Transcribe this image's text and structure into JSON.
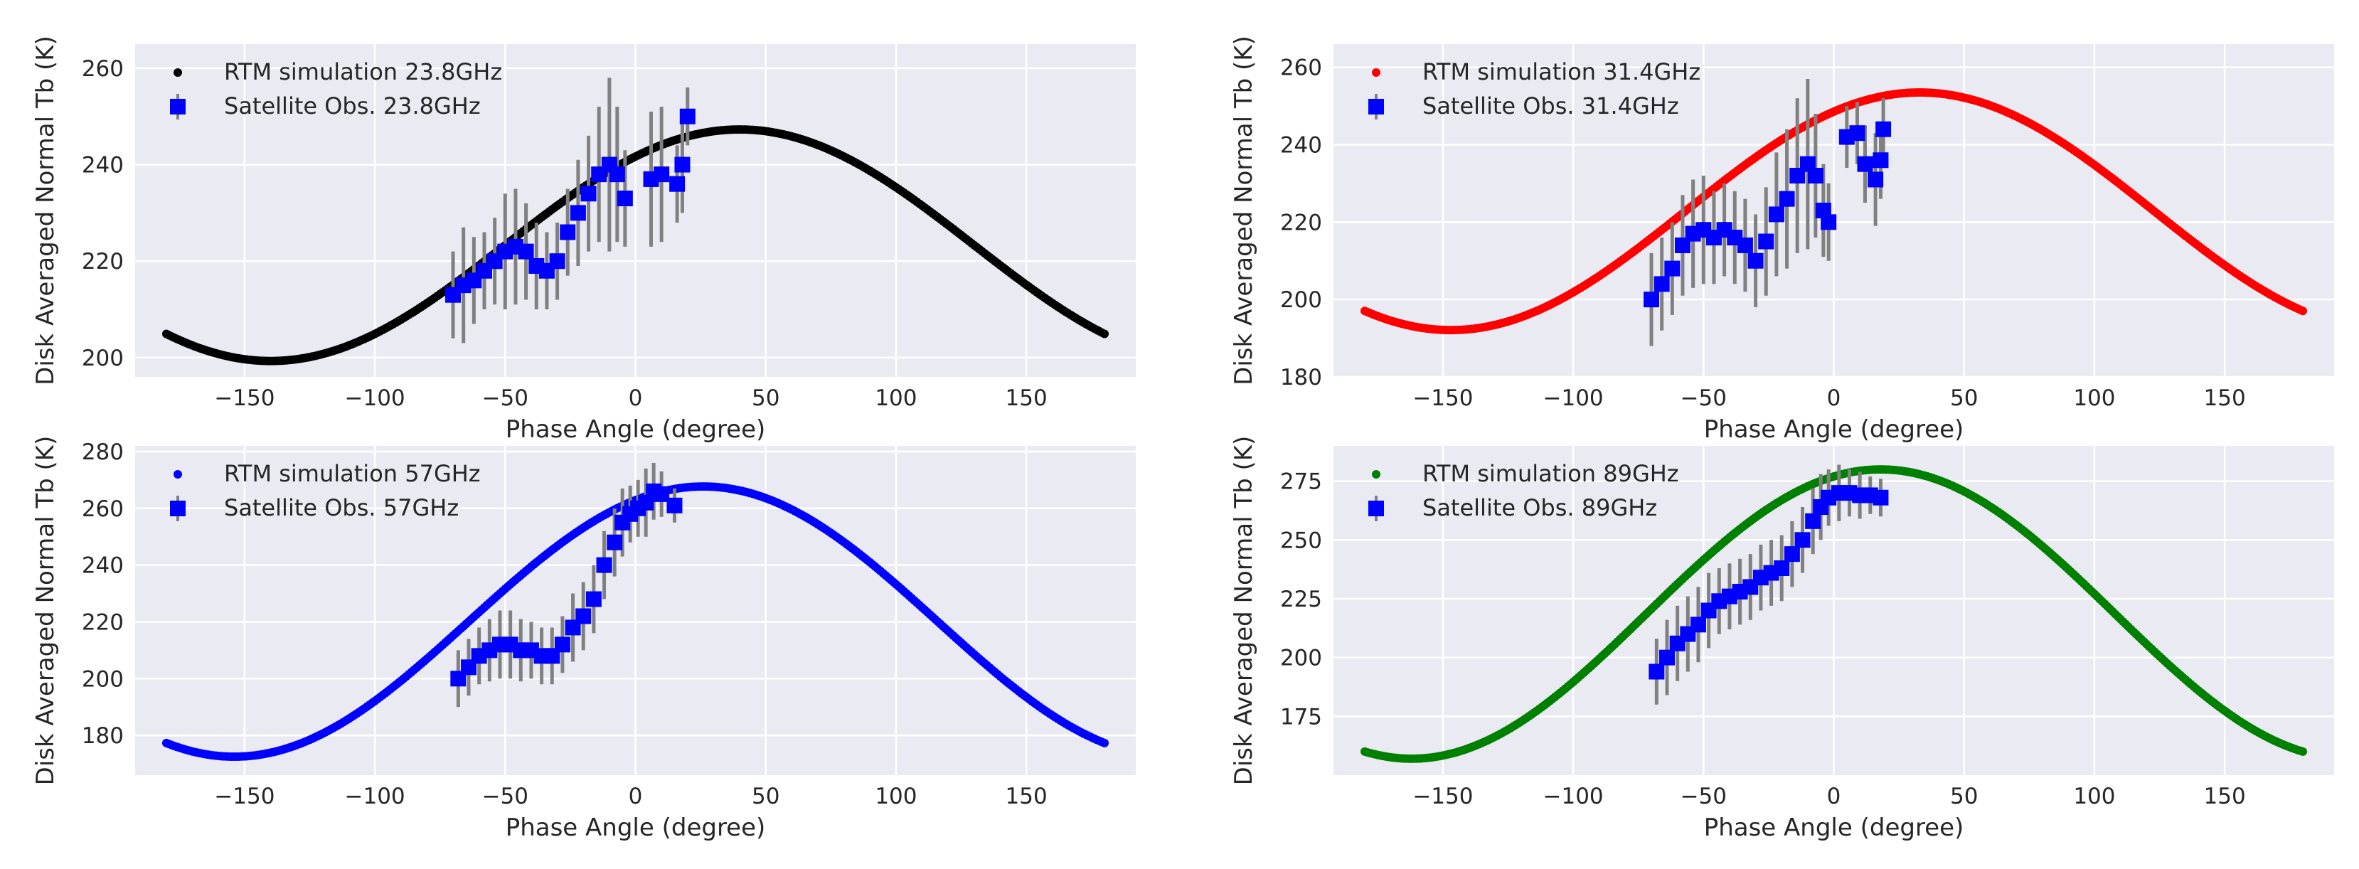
{
  "figure": {
    "background": "#ffffff",
    "panel_background": "#eaeaf2",
    "grid_color": "#ffffff",
    "errorbar_color": "#808080",
    "obs_color": "#0000ff"
  },
  "chart_data": [
    {
      "type": "scatter",
      "frequency": "23.8GHz",
      "xlabel": "Phase Angle (degree)",
      "ylabel": "Disk Averaged Normal Tb (K)",
      "xlim": [
        -192,
        192
      ],
      "ylim": [
        196,
        265
      ],
      "xticks": [
        -150,
        -100,
        -50,
        0,
        50,
        100,
        150
      ],
      "xticklabels": [
        "−150",
        "−100",
        "−50",
        "0",
        "50",
        "100",
        "150"
      ],
      "yticks": [
        200,
        220,
        240,
        260
      ],
      "yticklabels": [
        "200",
        "220",
        "240",
        "260"
      ],
      "legend_location": "upper-left",
      "model": {
        "name": "RTM simulation 23.8GHz",
        "color": "#000000",
        "mean": 223.3,
        "amplitude": 24.0,
        "peak_phase": 40
      },
      "observations": {
        "name": "Satellite Obs. 23.8GHz",
        "points": [
          [
            -70,
            213,
            9
          ],
          [
            -66,
            215,
            12
          ],
          [
            -62,
            216,
            9
          ],
          [
            -58,
            218,
            8
          ],
          [
            -54,
            220,
            9
          ],
          [
            -50,
            222,
            12
          ],
          [
            -46,
            223,
            12
          ],
          [
            -42,
            222,
            10
          ],
          [
            -38,
            219,
            9
          ],
          [
            -34,
            218,
            8
          ],
          [
            -30,
            220,
            8
          ],
          [
            -26,
            226,
            9
          ],
          [
            -22,
            230,
            11
          ],
          [
            -18,
            234,
            12
          ],
          [
            -14,
            238,
            14
          ],
          [
            -10,
            240,
            18
          ],
          [
            -7,
            238,
            14
          ],
          [
            -4,
            233,
            10
          ],
          [
            6,
            237,
            14
          ],
          [
            10,
            238,
            14
          ],
          [
            16,
            236,
            8
          ],
          [
            18,
            240,
            10
          ],
          [
            20,
            250,
            6
          ]
        ]
      }
    },
    {
      "type": "scatter",
      "frequency": "31.4GHz",
      "xlabel": "Phase Angle (degree)",
      "ylabel": "Disk Averaged Normal Tb (K)",
      "xlim": [
        -192,
        192
      ],
      "ylim": [
        180,
        266
      ],
      "xticks": [
        -150,
        -100,
        -50,
        0,
        50,
        100,
        150
      ],
      "xticklabels": [
        "−150",
        "−100",
        "−50",
        "0",
        "50",
        "100",
        "150"
      ],
      "yticks": [
        180,
        200,
        220,
        240,
        260
      ],
      "yticklabels": [
        "180",
        "200",
        "220",
        "240",
        "260"
      ],
      "legend_location": "upper-left",
      "model": {
        "name": "RTM simulation 31.4GHz",
        "color": "#ff0000",
        "mean": 222.8,
        "amplitude": 30.7,
        "peak_phase": 33
      },
      "observations": {
        "name": "Satellite Obs. 31.4GHz",
        "points": [
          [
            -70,
            200,
            12
          ],
          [
            -66,
            204,
            12
          ],
          [
            -62,
            208,
            12
          ],
          [
            -58,
            214,
            13
          ],
          [
            -54,
            217,
            14
          ],
          [
            -50,
            218,
            14
          ],
          [
            -46,
            216,
            12
          ],
          [
            -42,
            218,
            12
          ],
          [
            -38,
            216,
            12
          ],
          [
            -34,
            214,
            12
          ],
          [
            -30,
            210,
            12
          ],
          [
            -26,
            215,
            14
          ],
          [
            -22,
            222,
            16
          ],
          [
            -18,
            226,
            18
          ],
          [
            -14,
            232,
            20
          ],
          [
            -10,
            235,
            22
          ],
          [
            -7,
            232,
            16
          ],
          [
            -4,
            223,
            12
          ],
          [
            -2,
            220,
            10
          ],
          [
            5,
            242,
            8
          ],
          [
            9,
            243,
            8
          ],
          [
            12,
            235,
            10
          ],
          [
            16,
            231,
            12
          ],
          [
            18,
            236,
            10
          ],
          [
            19,
            244,
            8
          ]
        ]
      }
    },
    {
      "type": "scatter",
      "frequency": "57GHz",
      "xlabel": "Phase Angle (degree)",
      "ylabel": "Disk Averaged Normal Tb (K)",
      "xlim": [
        -192,
        192
      ],
      "ylim": [
        166,
        282
      ],
      "xticks": [
        -150,
        -100,
        -50,
        0,
        50,
        100,
        150
      ],
      "xticklabels": [
        "−150",
        "−100",
        "−50",
        "0",
        "50",
        "100",
        "150"
      ],
      "yticks": [
        180,
        200,
        220,
        240,
        260,
        280
      ],
      "yticklabels": [
        "180",
        "200",
        "220",
        "240",
        "260",
        "280"
      ],
      "legend_location": "upper-left",
      "model": {
        "name": "RTM simulation 57GHz",
        "color": "#0000ff",
        "mean": 220.1,
        "amplitude": 47.6,
        "peak_phase": 26
      },
      "observations": {
        "name": "Satellite Obs. 57GHz",
        "points": [
          [
            -68,
            200,
            10
          ],
          [
            -64,
            204,
            10
          ],
          [
            -60,
            208,
            10
          ],
          [
            -56,
            210,
            11
          ],
          [
            -52,
            212,
            12
          ],
          [
            -48,
            212,
            12
          ],
          [
            -44,
            210,
            11
          ],
          [
            -40,
            210,
            10
          ],
          [
            -36,
            208,
            10
          ],
          [
            -32,
            208,
            10
          ],
          [
            -28,
            212,
            10
          ],
          [
            -24,
            218,
            12
          ],
          [
            -20,
            222,
            12
          ],
          [
            -16,
            228,
            12
          ],
          [
            -12,
            240,
            12
          ],
          [
            -8,
            248,
            12
          ],
          [
            -5,
            255,
            12
          ],
          [
            -2,
            258,
            10
          ],
          [
            1,
            260,
            10
          ],
          [
            4,
            262,
            12
          ],
          [
            7,
            266,
            10
          ],
          [
            10,
            265,
            8
          ],
          [
            15,
            261,
            6
          ]
        ]
      }
    },
    {
      "type": "scatter",
      "frequency": "89GHz",
      "xlabel": "Phase Angle (degree)",
      "ylabel": "Disk Averaged Normal Tb (K)",
      "xlim": [
        -192,
        192
      ],
      "ylim": [
        150,
        290
      ],
      "xticks": [
        -150,
        -100,
        -50,
        0,
        50,
        100,
        150
      ],
      "xticklabels": [
        "−150",
        "−100",
        "−50",
        "0",
        "50",
        "100",
        "150"
      ],
      "yticks": [
        175,
        200,
        225,
        250,
        275
      ],
      "yticklabels": [
        "175",
        "200",
        "225",
        "250",
        "275"
      ],
      "legend_location": "upper-left",
      "model": {
        "name": "RTM simulation 89GHz",
        "color": "#008000",
        "mean": 218.5,
        "amplitude": 61.5,
        "peak_phase": 18
      },
      "observations": {
        "name": "Satellite Obs. 89GHz",
        "points": [
          [
            -68,
            194,
            14
          ],
          [
            -64,
            200,
            16
          ],
          [
            -60,
            206,
            16
          ],
          [
            -56,
            210,
            16
          ],
          [
            -52,
            214,
            16
          ],
          [
            -48,
            220,
            16
          ],
          [
            -44,
            224,
            14
          ],
          [
            -40,
            226,
            14
          ],
          [
            -36,
            228,
            14
          ],
          [
            -32,
            230,
            14
          ],
          [
            -28,
            234,
            14
          ],
          [
            -24,
            236,
            14
          ],
          [
            -20,
            238,
            14
          ],
          [
            -16,
            244,
            14
          ],
          [
            -12,
            250,
            14
          ],
          [
            -8,
            258,
            14
          ],
          [
            -5,
            264,
            14
          ],
          [
            -2,
            268,
            12
          ],
          [
            2,
            270,
            12
          ],
          [
            6,
            270,
            10
          ],
          [
            10,
            269,
            10
          ],
          [
            14,
            269,
            8
          ],
          [
            18,
            268,
            8
          ]
        ]
      }
    }
  ]
}
